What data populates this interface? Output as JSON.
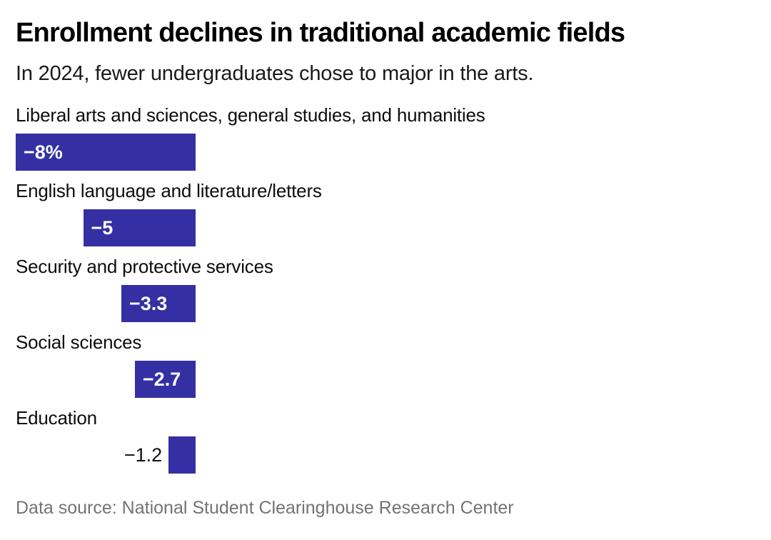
{
  "header": {
    "title": "Enrollment declines in traditional academic fields",
    "subtitle": "In 2024, fewer undergraduates chose to major in the arts."
  },
  "footer": {
    "source": "Data source: National Student Clearinghouse Research Center"
  },
  "colors": {
    "background": "#ffffff",
    "bar": "#3430a3",
    "title_text": "#000000",
    "body_text": "#0d0d0d",
    "value_label_inside": "#ffffff",
    "value_label_outside": "#111111",
    "source_text": "#737373"
  },
  "chart_data": {
    "type": "bar",
    "orientation": "horizontal",
    "title": "Enrollment declines in traditional academic fields",
    "subtitle": "In 2024, fewer undergraduates chose to major in the arts.",
    "categories": [
      "Liberal arts and sciences, general studies, and humanities",
      "English language and literature/letters",
      "Security and protective services",
      "Social sciences",
      "Education"
    ],
    "values": [
      -8,
      -5,
      -3.3,
      -2.7,
      -1.2
    ],
    "value_labels": [
      "−8%",
      "−5",
      "−3.3",
      "−2.7",
      "−1.2"
    ],
    "xlim": [
      -8,
      0
    ],
    "bars_right_aligned_at_zero": true,
    "grid": false,
    "legend": false,
    "bar_color": "#3430a3",
    "source": "Data source: National Student Clearinghouse Research Center"
  }
}
